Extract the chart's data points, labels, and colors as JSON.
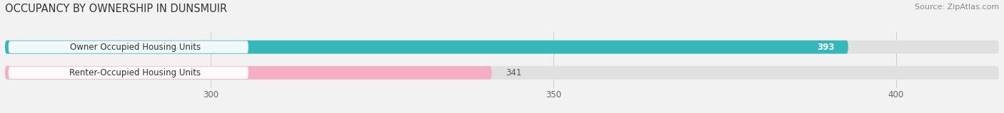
{
  "title": "OCCUPANCY BY OWNERSHIP IN DUNSMUIR",
  "source": "Source: ZipAtlas.com",
  "categories": [
    "Owner Occupied Housing Units",
    "Renter-Occupied Housing Units"
  ],
  "values": [
    393,
    341
  ],
  "bar_colors": [
    "#35b8bc",
    "#f5aec4"
  ],
  "xlim_min": 270,
  "xlim_max": 415,
  "xticks": [
    300,
    350,
    400
  ],
  "bar_height": 0.52,
  "background_color": "#f2f2f2",
  "bar_bg_color": "#e0e0e0",
  "title_fontsize": 10.5,
  "source_fontsize": 8,
  "label_fontsize": 8.5,
  "value_fontsize": 8.5,
  "value_393_color": "#ffffff",
  "value_341_color": "#555555",
  "label_box_color": "#ffffff",
  "label_text_color": "#333333"
}
